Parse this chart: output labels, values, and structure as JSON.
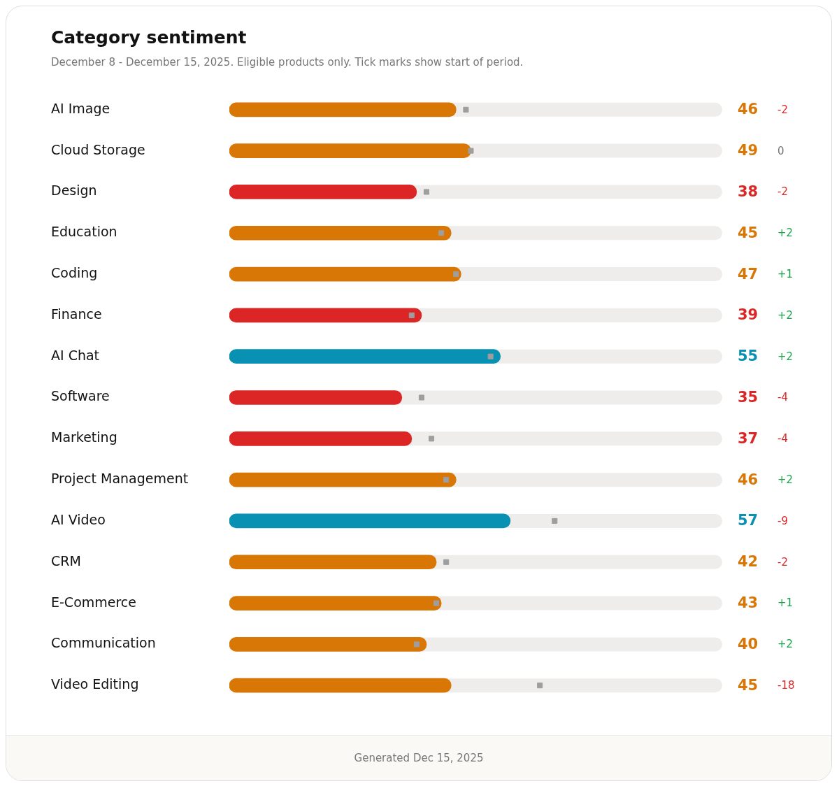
{
  "chart_data": {
    "type": "bar",
    "orientation": "horizontal",
    "title": "Category sentiment",
    "subtitle": "December 8 - December 15, 2025. Eligible products only. Tick marks show start of period.",
    "categories": [
      "AI Image",
      "Cloud Storage",
      "Design",
      "Education",
      "Coding",
      "Finance",
      "AI Chat",
      "Software",
      "Marketing",
      "Project Management",
      "AI Video",
      "CRM",
      "E-Commerce",
      "Communication",
      "Video Editing"
    ],
    "series": [
      {
        "colors": [
          "#d97706",
          "#d97706",
          "#dc2626",
          "#d97706",
          "#d97706",
          "#dc2626",
          "#0891b2",
          "#dc2626",
          "#dc2626",
          "#d97706",
          "#0891b2",
          "#d97706",
          "#d97706",
          "#d97706",
          "#d97706"
        ],
        "values": [
          46,
          49,
          38,
          45,
          47,
          39,
          55,
          35,
          37,
          46,
          57,
          42,
          43,
          40,
          45
        ],
        "value_labels": [
          "46",
          "49",
          "38",
          "45",
          "47",
          "39",
          "55",
          "35",
          "37",
          "46",
          "57",
          "42",
          "43",
          "40",
          "45"
        ]
      },
      {
        "type": "scatter",
        "color": "#9e9e9e",
        "marker": "square",
        "values": [
          48,
          49,
          40,
          43,
          46,
          37,
          53,
          39,
          41,
          44,
          66,
          44,
          42,
          38,
          63
        ]
      }
    ],
    "xlim": [
      0,
      100
    ],
    "tick_labels": "y",
    "grid": false,
    "legend": false,
    "annotations": [
      "-2",
      "0",
      "-2",
      "+2",
      "+1",
      "+2",
      "+2",
      "-4",
      "-4",
      "+2",
      "-9",
      "-2",
      "+1",
      "+2",
      "-18",
      "Generated Dec 15, 2025"
    ]
  }
}
